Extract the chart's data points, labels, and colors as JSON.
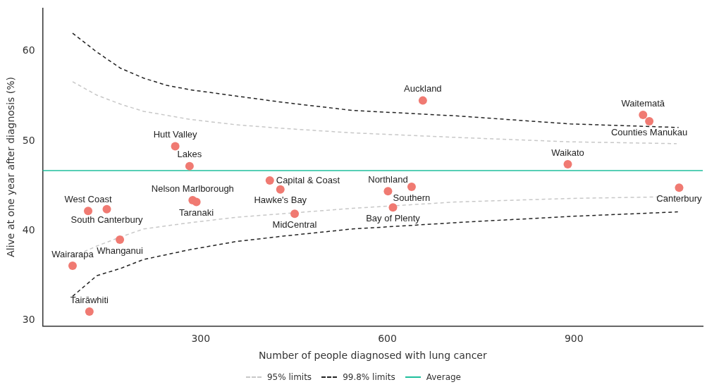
{
  "chart_data": {
    "type": "scatter",
    "xlabel": "Number of people diagnosed with lung cancer",
    "ylabel": "Alive at one year after diagnosis (%)",
    "xlim": [
      46,
      1107
    ],
    "xticks": [
      300,
      600,
      900
    ],
    "ylim": [
      29.4,
      64.8
    ],
    "yticks": [
      30,
      40,
      50,
      60
    ],
    "grid": false,
    "legend": "bottom",
    "series": [
      {
        "color": "#f07a72",
        "marker": "circle",
        "x": [
          94,
          121,
          119,
          149,
          170,
          259,
          282,
          287,
          293,
          411,
          428,
          451,
          657,
          1011,
          1021,
          890,
          1069,
          601,
          639,
          609
        ],
        "values": [
          36.1,
          31.0,
          42.2,
          42.4,
          39.0,
          49.4,
          47.2,
          43.4,
          43.2,
          45.6,
          44.6,
          41.9,
          54.5,
          52.9,
          52.2,
          47.4,
          44.8,
          44.4,
          44.9,
          42.6
        ]
      },
      {
        "type": "line",
        "name": "95% limits",
        "color": "#c8c8c8",
        "line_style": "dashed",
        "marker": "none",
        "x": [
          94,
          133,
          171,
          208,
          283,
          357,
          432,
          544,
          709,
          894,
          1065
        ],
        "values": [
          56.6,
          55.1,
          54.1,
          53.3,
          52.4,
          51.8,
          51.4,
          50.9,
          50.4,
          49.9,
          49.7
        ]
      },
      {
        "type": "line",
        "color": "#c8c8c8",
        "line_style": "dashed",
        "marker": "none",
        "x": [
          94,
          133,
          171,
          208,
          283,
          357,
          432,
          544,
          709,
          894,
          1065
        ],
        "values": [
          37.1,
          38.3,
          39.3,
          40.2,
          40.9,
          41.5,
          41.9,
          42.5,
          43.2,
          43.6,
          43.8
        ]
      },
      {
        "type": "line",
        "name": "99.8% limits",
        "color": "#222222",
        "line_style": "dashed",
        "marker": "none",
        "x": [
          94,
          133,
          171,
          208,
          245,
          283,
          357,
          432,
          544,
          709,
          894,
          1068
        ],
        "values": [
          62.0,
          59.9,
          58.1,
          57.0,
          56.2,
          55.7,
          55.0,
          54.3,
          53.4,
          52.8,
          51.9,
          51.5
        ]
      },
      {
        "type": "line",
        "color": "#222222",
        "line_style": "dashed",
        "marker": "none",
        "x": [
          94,
          133,
          171,
          208,
          283,
          357,
          432,
          544,
          709,
          894,
          1067
        ],
        "values": [
          32.7,
          35.0,
          35.8,
          36.8,
          37.9,
          38.8,
          39.4,
          40.2,
          40.9,
          41.6,
          42.1
        ]
      }
    ],
    "ref_lines": [
      {
        "axis": "y",
        "value": 46.7,
        "label": "Average",
        "color": "#1fbf9c",
        "line_style": "solid"
      }
    ],
    "annotations": [
      {
        "text": "Wairarapa",
        "x": 94,
        "y": 36.1
      },
      {
        "text": "Tairāwhiti",
        "x": 121,
        "y": 31.0
      },
      {
        "text": "West Coast",
        "x": 119,
        "y": 42.2
      },
      {
        "text": "South Canterbury",
        "x": 149,
        "y": 42.4
      },
      {
        "text": "Whanganui",
        "x": 170,
        "y": 39.0
      },
      {
        "text": "Hutt Valley",
        "x": 259,
        "y": 49.4
      },
      {
        "text": "Lakes",
        "x": 282,
        "y": 47.2
      },
      {
        "text": "Nelson Marlborough",
        "x": 287,
        "y": 43.4
      },
      {
        "text": "Taranaki",
        "x": 293,
        "y": 43.2
      },
      {
        "text": "Capital & Coast",
        "x": 411,
        "y": 45.6
      },
      {
        "text": "Hawke's Bay",
        "x": 428,
        "y": 44.6
      },
      {
        "text": "MidCentral",
        "x": 451,
        "y": 41.9
      },
      {
        "text": "Auckland",
        "x": 657,
        "y": 54.5
      },
      {
        "text": "Waitematā",
        "x": 1011,
        "y": 52.9
      },
      {
        "text": "Counties Manukau",
        "x": 1021,
        "y": 52.2
      },
      {
        "text": "Waikato",
        "x": 890,
        "y": 47.4
      },
      {
        "text": "Canterbury",
        "x": 1069,
        "y": 44.8
      },
      {
        "text": "Northland",
        "x": 601,
        "y": 44.4
      },
      {
        "text": "Southern",
        "x": 639,
        "y": 44.9
      },
      {
        "text": "Bay of Plenty",
        "x": 609,
        "y": 42.6
      }
    ]
  }
}
